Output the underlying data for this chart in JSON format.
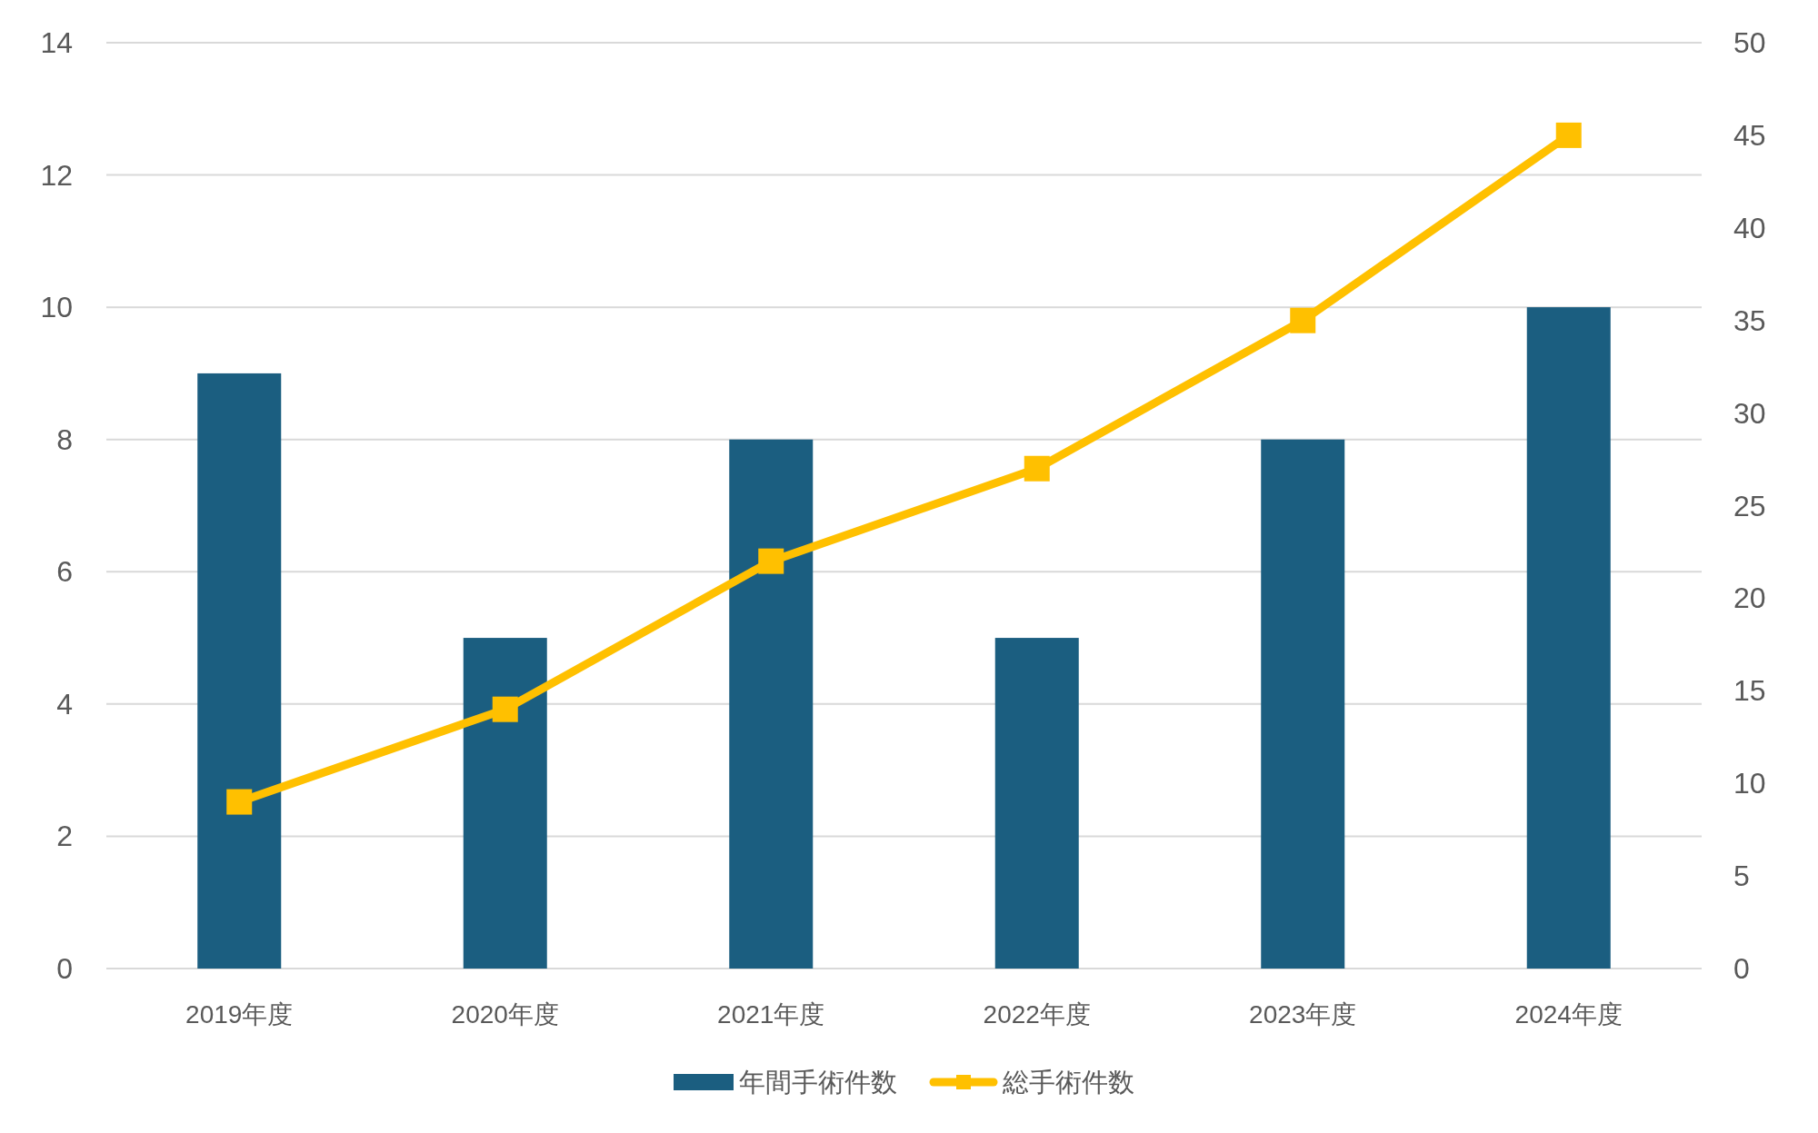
{
  "chart_data": {
    "type": "bar",
    "categories": [
      "2019年度",
      "2020年度",
      "2021年度",
      "2022年度",
      "2023年度",
      "2024年度"
    ],
    "series": [
      {
        "name": "年間手術件数",
        "color": "#1b5e80",
        "values": [
          9,
          5,
          8,
          5,
          8,
          10
        ]
      },
      {
        "name": "総手術件数",
        "type": "line",
        "axis": "y2",
        "color": "#ffc000",
        "marker": "square",
        "values": [
          9,
          14,
          22,
          27,
          35,
          45
        ]
      }
    ],
    "ylim": [
      0,
      14
    ],
    "yticks": [
      0,
      2,
      4,
      6,
      8,
      10,
      12,
      14
    ],
    "y2lim": [
      0,
      50
    ],
    "y2ticks": [
      0,
      5,
      10,
      15,
      20,
      25,
      30,
      35,
      40,
      45,
      50
    ],
    "grid": "y",
    "legend": "bottom"
  }
}
